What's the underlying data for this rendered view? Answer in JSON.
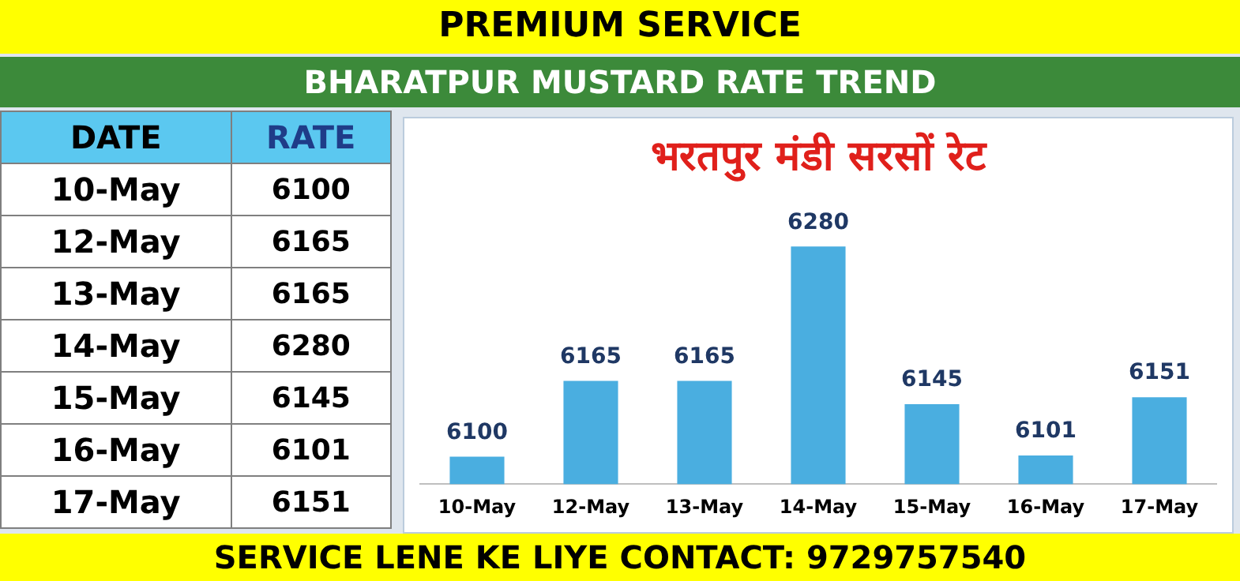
{
  "chart_data": [
    {
      "type": "bar",
      "title": "भरतपुर मंडी सरसों रेट",
      "subtitle": "BHARATPUR MUSTARD RATE TREND",
      "annotations": [
        "PREMIUM SERVICE",
        "SERVICE LENE KE LIYE CONTACT: 9729757540"
      ],
      "categories": [
        "10-May",
        "12-May",
        "13-May",
        "14-May",
        "15-May",
        "16-May",
        "17-May"
      ],
      "values": [
        6100,
        6165,
        6165,
        6280,
        6145,
        6101,
        6151
      ],
      "color": "#4aaee0",
      "tick_labels": "x",
      "grid": false,
      "legend": false,
      "data_labels": true
    },
    {
      "type": "other",
      "annotations": [
        "DATE",
        "RATE"
      ],
      "categories": [
        "10-May",
        "12-May",
        "13-May",
        "14-May",
        "15-May",
        "16-May",
        "17-May"
      ],
      "values": [
        6100,
        6165,
        6165,
        6280,
        6145,
        6101,
        6151
      ],
      "data_labels": true
    }
  ]
}
